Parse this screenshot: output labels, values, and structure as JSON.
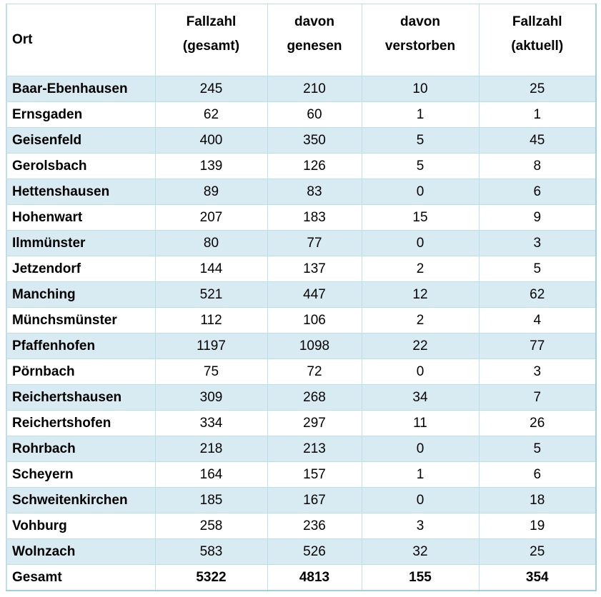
{
  "table": {
    "header": [
      {
        "lines": [
          "Ort"
        ]
      },
      {
        "lines": [
          "Fallzahl",
          "(gesamt)"
        ]
      },
      {
        "lines": [
          "davon",
          "genesen"
        ]
      },
      {
        "lines": [
          "davon",
          "verstorben"
        ]
      },
      {
        "lines": [
          "Fallzahl",
          "(aktuell)"
        ]
      }
    ],
    "rows": [
      [
        "Baar-Ebenhausen",
        "245",
        "210",
        "10",
        "25"
      ],
      [
        "Ernsgaden",
        "62",
        "60",
        "1",
        "1"
      ],
      [
        "Geisenfeld",
        "400",
        "350",
        "5",
        "45"
      ],
      [
        "Gerolsbach",
        "139",
        "126",
        "5",
        "8"
      ],
      [
        "Hettenshausen",
        "89",
        "83",
        "0",
        "6"
      ],
      [
        "Hohenwart",
        "207",
        "183",
        "15",
        "9"
      ],
      [
        "Ilmmünster",
        "80",
        "77",
        "0",
        "3"
      ],
      [
        "Jetzendorf",
        "144",
        "137",
        "2",
        "5"
      ],
      [
        "Manching",
        "521",
        "447",
        "12",
        "62"
      ],
      [
        "Münchsmünster",
        "112",
        "106",
        "2",
        "4"
      ],
      [
        "Pfaffenhofen",
        "1197",
        "1098",
        "22",
        "77"
      ],
      [
        "Pörnbach",
        "75",
        "72",
        "0",
        "3"
      ],
      [
        "Reichertshausen",
        "309",
        "268",
        "34",
        "7"
      ],
      [
        "Reichertshofen",
        "334",
        "297",
        "11",
        "26"
      ],
      [
        "Rohrbach",
        "218",
        "213",
        "0",
        "5"
      ],
      [
        "Scheyern",
        "164",
        "157",
        "1",
        "6"
      ],
      [
        "Schweitenkirchen",
        "185",
        "167",
        "0",
        "18"
      ],
      [
        "Vohburg",
        "258",
        "236",
        "3",
        "19"
      ],
      [
        "Wolnzach",
        "583",
        "526",
        "32",
        "25"
      ]
    ],
    "total": [
      "Gesamt",
      "5322",
      "4813",
      "155",
      "354"
    ],
    "colors": {
      "stripe": "#d8eaf2",
      "border_thin": "#bedfea",
      "border_thick": "#a5cfdd",
      "text": "#000000",
      "background": "#ffffff"
    }
  },
  "chart_data": {
    "type": "table",
    "columns": [
      "Ort",
      "Fallzahl (gesamt)",
      "davon genesen",
      "davon verstorben",
      "Fallzahl (aktuell)"
    ],
    "rows": [
      [
        "Baar-Ebenhausen",
        245,
        210,
        10,
        25
      ],
      [
        "Ernsgaden",
        62,
        60,
        1,
        1
      ],
      [
        "Geisenfeld",
        400,
        350,
        5,
        45
      ],
      [
        "Gerolsbach",
        139,
        126,
        5,
        8
      ],
      [
        "Hettenshausen",
        89,
        83,
        0,
        6
      ],
      [
        "Hohenwart",
        207,
        183,
        15,
        9
      ],
      [
        "Ilmmünster",
        80,
        77,
        0,
        3
      ],
      [
        "Jetzendorf",
        144,
        137,
        2,
        5
      ],
      [
        "Manching",
        521,
        447,
        12,
        62
      ],
      [
        "Münchsmünster",
        112,
        106,
        2,
        4
      ],
      [
        "Pfaffenhofen",
        1197,
        1098,
        22,
        77
      ],
      [
        "Pörnbach",
        75,
        72,
        0,
        3
      ],
      [
        "Reichertshausen",
        309,
        268,
        34,
        7
      ],
      [
        "Reichertshofen",
        334,
        297,
        11,
        26
      ],
      [
        "Rohrbach",
        218,
        213,
        0,
        5
      ],
      [
        "Scheyern",
        164,
        157,
        1,
        6
      ],
      [
        "Schweitenkirchen",
        185,
        167,
        0,
        18
      ],
      [
        "Vohburg",
        258,
        236,
        3,
        19
      ],
      [
        "Wolnzach",
        583,
        526,
        32,
        25
      ]
    ],
    "total_row": [
      "Gesamt",
      5322,
      4813,
      155,
      354
    ]
  }
}
